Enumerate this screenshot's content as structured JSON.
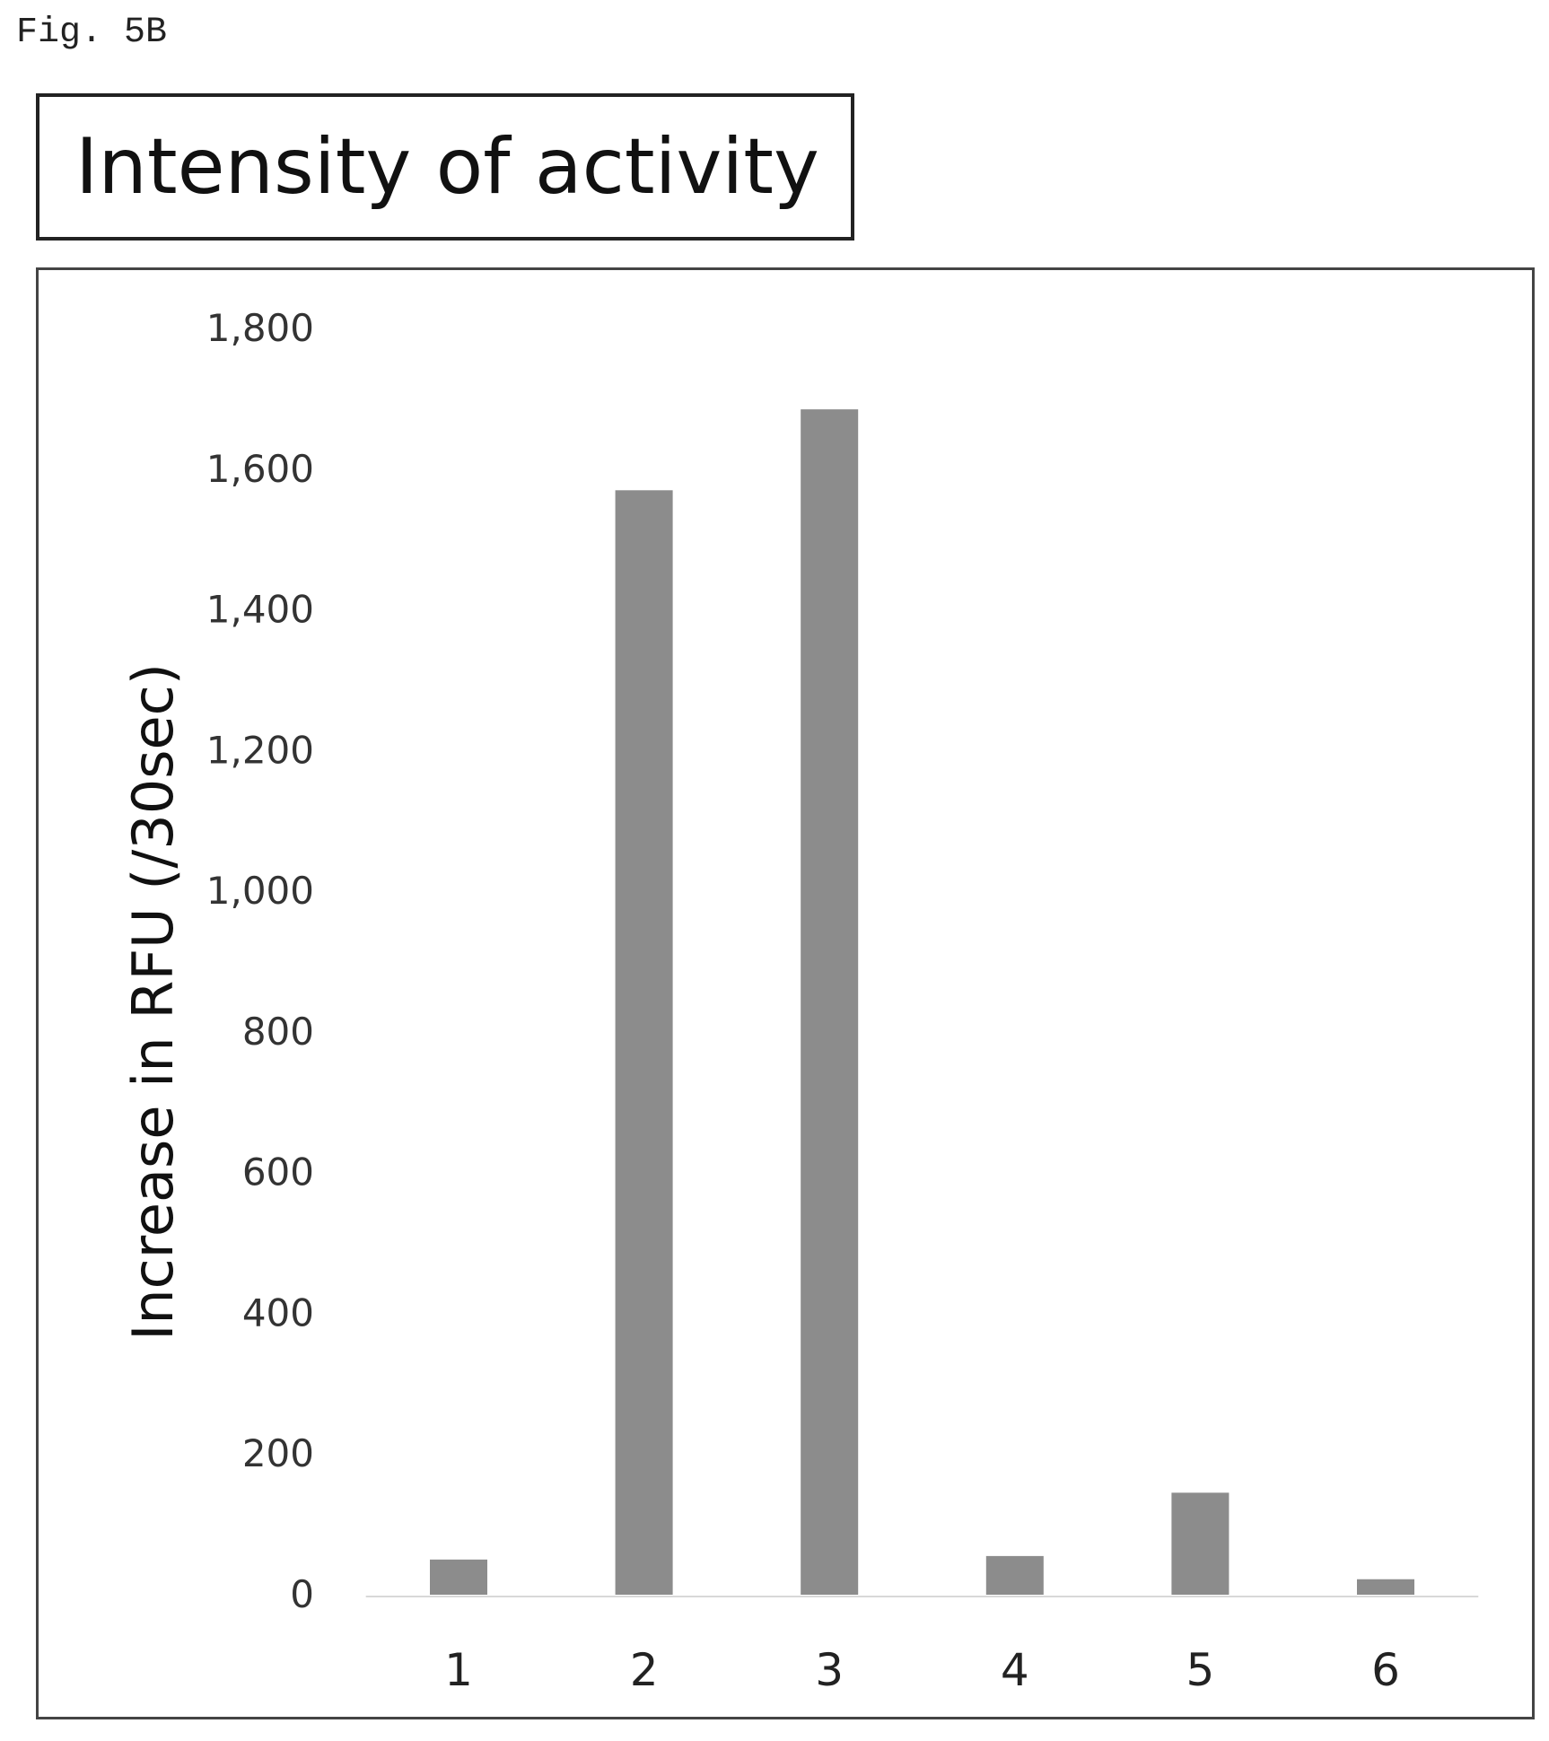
{
  "figure_label": "Fig. 5B",
  "chart_data": {
    "type": "bar",
    "title": "Intensity of activity",
    "xlabel": "",
    "ylabel": "Increase in RFU (/30sec)",
    "categories": [
      "1",
      "2",
      "3",
      "4",
      "5",
      "6"
    ],
    "values": [
      50,
      1570,
      1685,
      55,
      145,
      22
    ],
    "ylim": [
      0,
      1800
    ],
    "yticks": [
      0,
      200,
      400,
      600,
      800,
      1000,
      1200,
      1400,
      1600,
      1800
    ],
    "ytick_labels": [
      "0",
      "200",
      "400",
      "600",
      "800",
      "1,000",
      "1,200",
      "1,400",
      "1,600",
      "1,800"
    ],
    "grid": false,
    "legend": "none",
    "bar_color": "#8c8c8c"
  }
}
